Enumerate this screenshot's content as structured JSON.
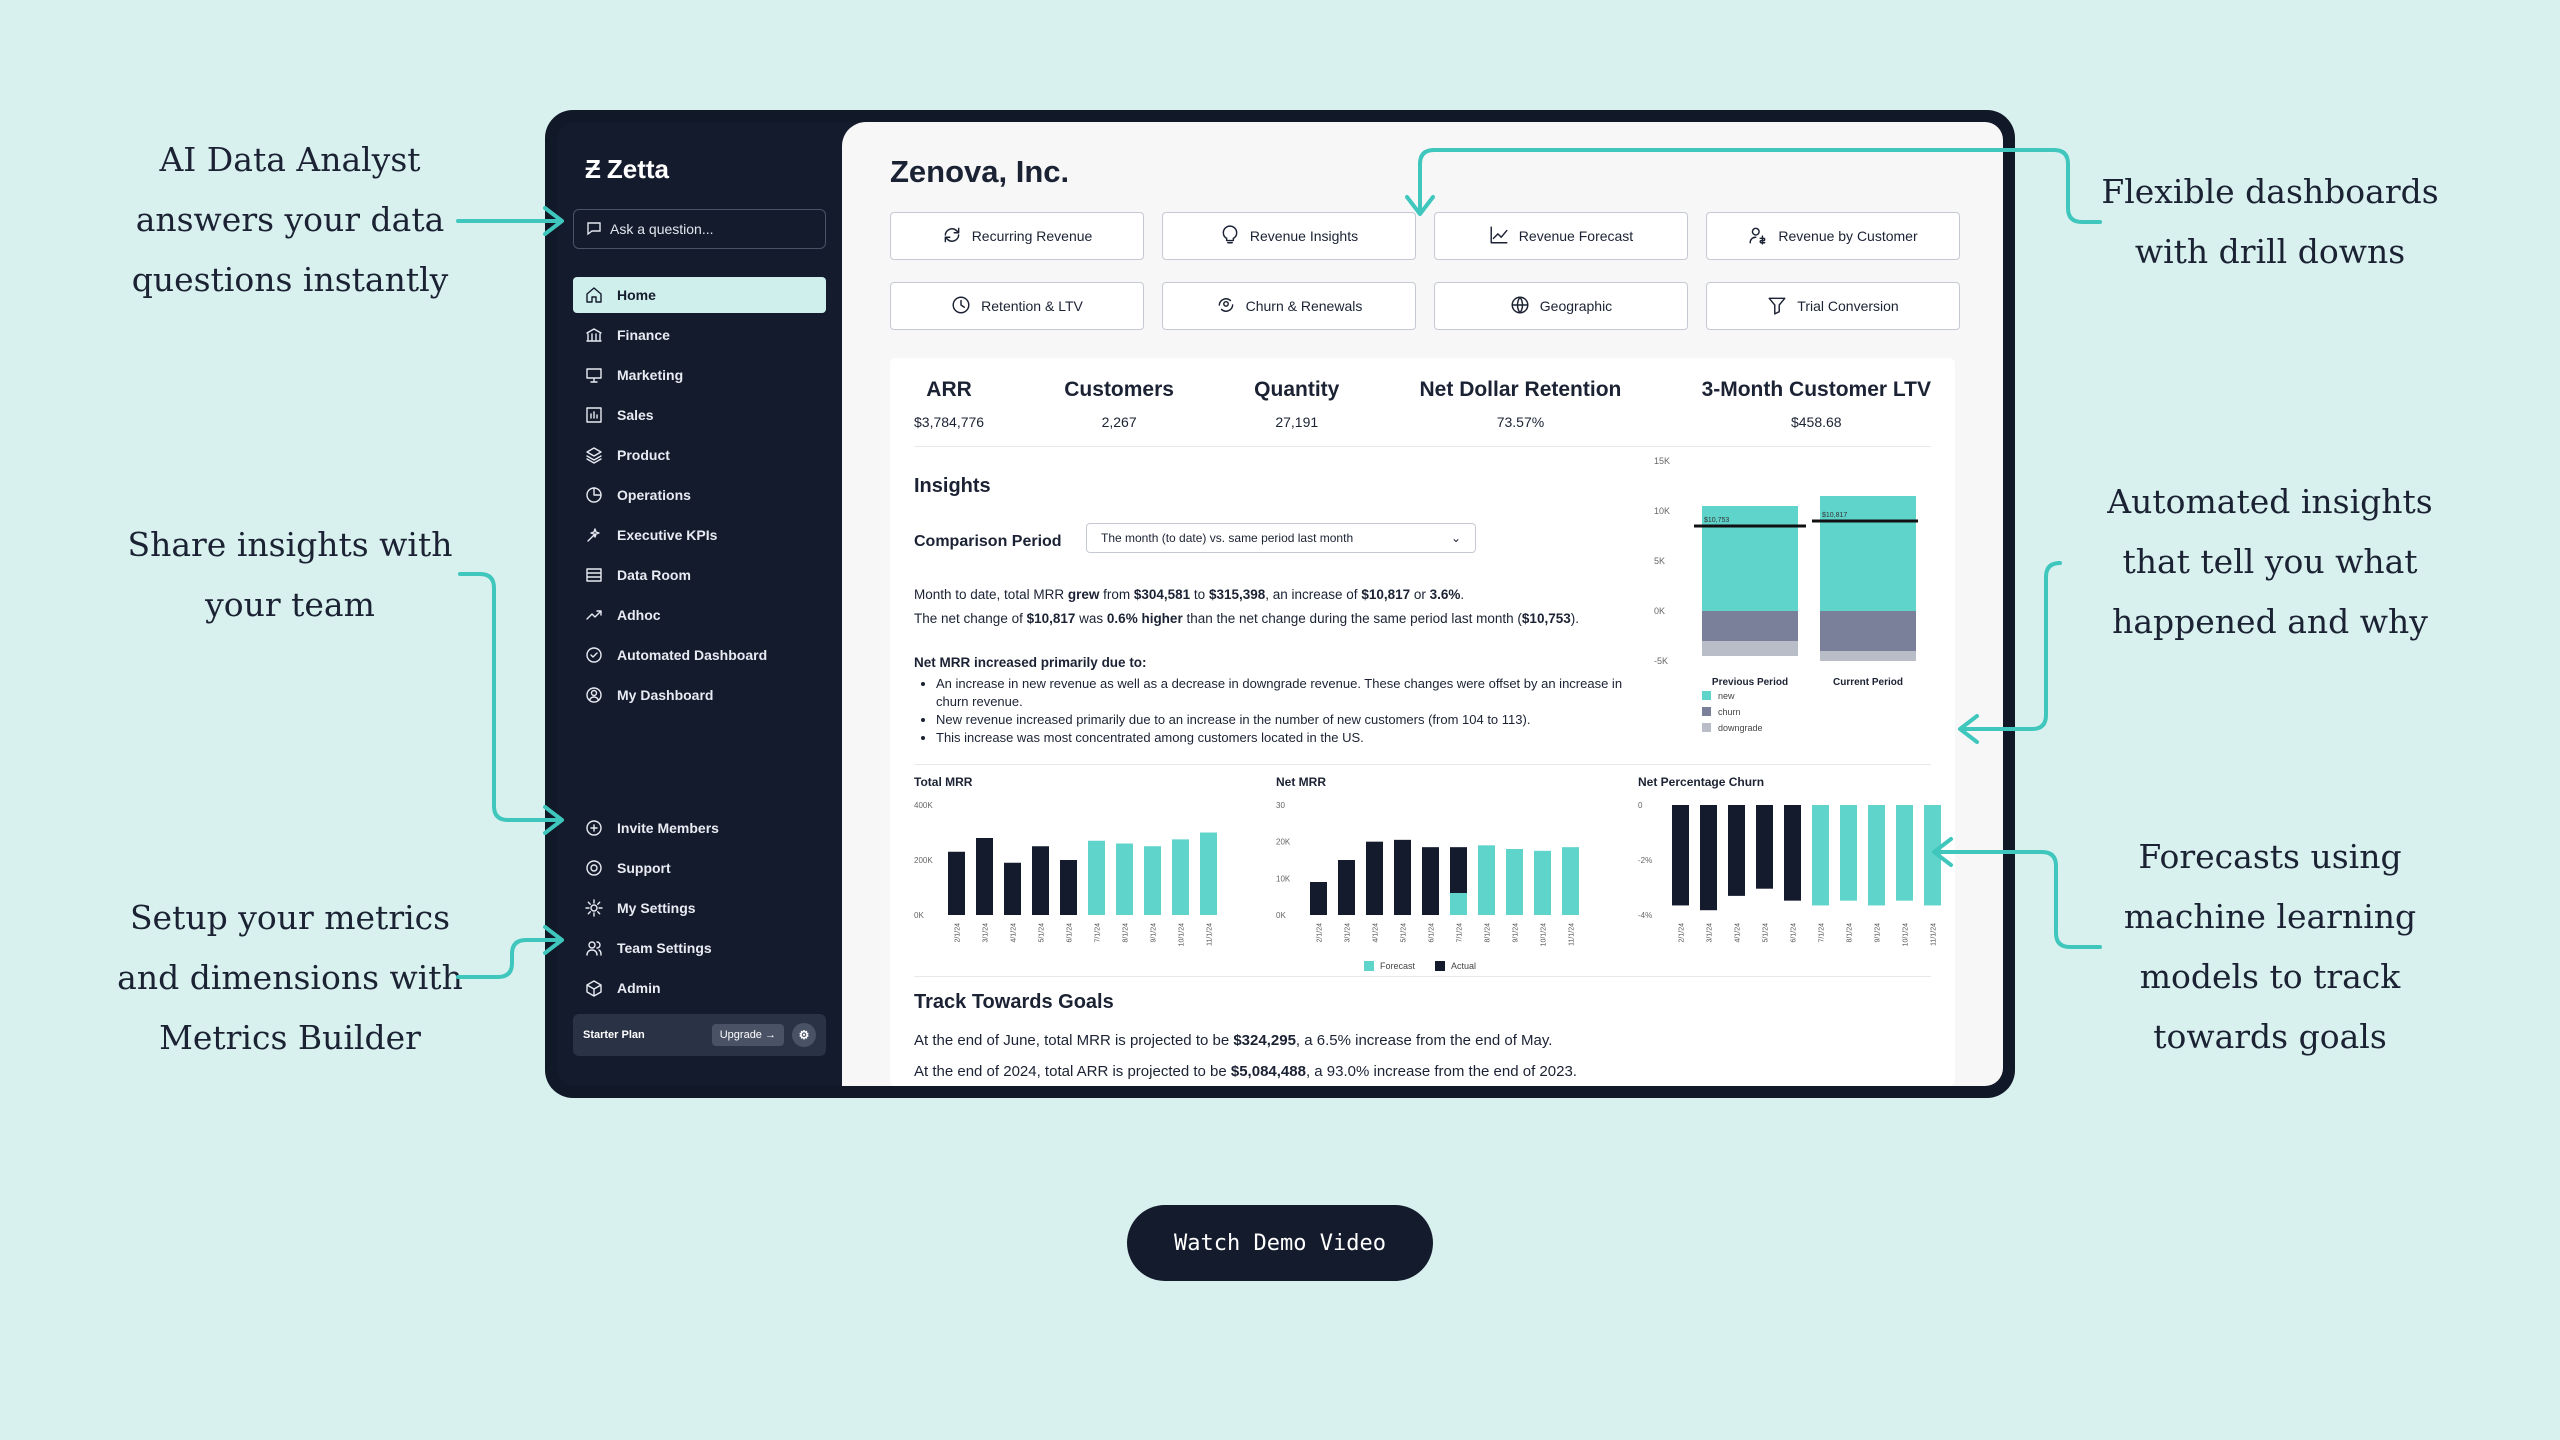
{
  "annotations": {
    "ai": [
      "AI Data Analyst",
      "answers your data",
      "questions instantly"
    ],
    "share": [
      "Share insights with",
      "your team"
    ],
    "setup": [
      "Setup your metrics",
      "and dimensions with",
      "Metrics Builder"
    ],
    "flex": [
      "Flexible dashboards",
      "with drill downs"
    ],
    "auto": [
      "Automated insights",
      "that tell you what",
      "happened and why"
    ],
    "forecast": [
      "Forecasts using",
      "machine learning",
      "models to track",
      "towards goals"
    ]
  },
  "app": {
    "logo": "Zetta",
    "ask_placeholder": "Ask a question...",
    "nav": [
      {
        "label": "Home",
        "icon": "home-icon",
        "active": true
      },
      {
        "label": "Finance",
        "icon": "bank-icon"
      },
      {
        "label": "Marketing",
        "icon": "presentation-icon"
      },
      {
        "label": "Sales",
        "icon": "bar-chart-icon"
      },
      {
        "label": "Product",
        "icon": "layers-icon"
      },
      {
        "label": "Operations",
        "icon": "pie-icon"
      },
      {
        "label": "Executive KPIs",
        "icon": "sparkle-icon"
      },
      {
        "label": "Data Room",
        "icon": "database-icon"
      },
      {
        "label": "Adhoc",
        "icon": "trend-icon"
      },
      {
        "label": "Automated Dashboard",
        "icon": "check-circle-icon"
      },
      {
        "label": "My Dashboard",
        "icon": "user-circle-icon"
      }
    ],
    "nav_bottom": [
      {
        "label": "Invite Members",
        "icon": "plus-circle-icon"
      },
      {
        "label": "Support",
        "icon": "life-buoy-icon"
      },
      {
        "label": "My Settings",
        "icon": "gear-icon"
      },
      {
        "label": "Team Settings",
        "icon": "users-icon"
      },
      {
        "label": "Admin",
        "icon": "cube-icon"
      }
    ],
    "plan": {
      "label": "Starter Plan",
      "upgrade": "Upgrade →"
    }
  },
  "main": {
    "company": "Zenova, Inc.",
    "tiles": [
      {
        "label": "Recurring Revenue",
        "icon": "refresh-dollar-icon"
      },
      {
        "label": "Revenue Insights",
        "icon": "lightbulb-icon"
      },
      {
        "label": "Revenue Forecast",
        "icon": "line-chart-icon"
      },
      {
        "label": "Revenue by Customer",
        "icon": "user-dollar-icon"
      },
      {
        "label": "Retention & LTV",
        "icon": "clock-icon"
      },
      {
        "label": "Churn & Renewals",
        "icon": "cycle-user-icon"
      },
      {
        "label": "Geographic",
        "icon": "globe-icon"
      },
      {
        "label": "Trial Conversion",
        "icon": "funnel-icon"
      }
    ],
    "kpis": [
      {
        "label": "ARR",
        "value": "$3,784,776"
      },
      {
        "label": "Customers",
        "value": "2,267"
      },
      {
        "label": "Quantity",
        "value": "27,191"
      },
      {
        "label": "Net Dollar Retention",
        "value": "73.57%"
      },
      {
        "label": "3-Month Customer LTV",
        "value": "$458.68"
      }
    ],
    "insights": {
      "title": "Insights",
      "comparison_label": "Comparison Period",
      "comparison_value": "The month (to date) vs. same period last month",
      "line1": [
        "Month to date, total MRR ",
        "grew",
        " from ",
        "$304,581",
        " to ",
        "$315,398",
        ", an increase of ",
        "$10,817",
        " or ",
        "3.6%",
        "."
      ],
      "line2": [
        "The net change of ",
        "$10,817",
        " was ",
        "0.6% higher",
        " than the net change during the same period last month (",
        "$10,753",
        ")."
      ],
      "reason_title": "Net MRR increased primarily due to:",
      "reasons": [
        "An increase in new revenue as well as a decrease in downgrade revenue. These changes were offset by an increase in churn revenue.",
        "New revenue increased primarily due to an increase in the number of new customers (from 104 to 113).",
        "This increase was most concentrated among customers located in the US."
      ]
    },
    "goals": {
      "title": "Track Towards Goals",
      "line1": [
        "At the end of June, total MRR is projected to be ",
        "$324,295",
        ", a 6.5% increase from the end of May."
      ],
      "line2": [
        "At the end of 2024, total ARR is projected to be ",
        "$5,084,488",
        ", a 93.0% increase from the end of 2023."
      ]
    },
    "mini_legend": {
      "forecast": "Forecast",
      "actual": "Actual"
    }
  },
  "demo_button": "Watch Demo Video",
  "colors": {
    "teal": "#5fd4cb",
    "navy": "#141b2d",
    "gray": "#b9bdc7",
    "slate": "#7a809a"
  },
  "chart_data": [
    {
      "type": "bar",
      "stacked": true,
      "categories": [
        "Previous Period",
        "Current Period"
      ],
      "series": [
        {
          "name": "new",
          "values": [
            10.5,
            11.5
          ]
        },
        {
          "name": "churn",
          "values": [
            -3.0,
            -4.0
          ]
        },
        {
          "name": "downgrade",
          "values": [
            -1.5,
            -1.0
          ]
        }
      ],
      "ticks": [
        "15K",
        "10K",
        "5K",
        "0K",
        "-5K"
      ],
      "ylim": [
        -5,
        15
      ],
      "annotations": [
        "$10,753",
        "$10,817"
      ]
    },
    {
      "type": "bar",
      "title": "Total MRR",
      "ticks": [
        "400K",
        "200K",
        "0K"
      ],
      "categories": [
        "2/1/24",
        "3/1/24",
        "4/1/24",
        "5/1/24",
        "6/1/24",
        "7/1/24",
        "8/1/24",
        "9/1/24",
        "10/1/24",
        "11/1/24"
      ],
      "actual": [
        230000,
        280000,
        190000,
        250000,
        200000,
        null,
        null,
        null,
        null,
        null
      ],
      "forecast": [
        null,
        null,
        null,
        null,
        null,
        270000,
        260000,
        250000,
        275000,
        300000
      ],
      "ylim": [
        0,
        400000
      ]
    },
    {
      "type": "bar",
      "title": "Net MRR",
      "ticks": [
        "30",
        "20K",
        "10K",
        "0K"
      ],
      "categories": [
        "2/1/24",
        "3/1/24",
        "4/1/24",
        "5/1/24",
        "6/1/24",
        "7/1/24",
        "8/1/24",
        "9/1/24",
        "10/1/24",
        "11/1/24"
      ],
      "actual": [
        9000,
        15000,
        20000,
        20500,
        18500,
        18500,
        null,
        null,
        null,
        null
      ],
      "forecast": [
        null,
        null,
        null,
        null,
        null,
        6000,
        19000,
        18000,
        17500,
        18500
      ],
      "ylim": [
        0,
        30000
      ]
    },
    {
      "type": "bar",
      "title": "Net Percentage Churn",
      "ticks": [
        "0",
        "-2%",
        "-4%"
      ],
      "categories": [
        "2/1/24",
        "3/1/24",
        "4/1/24",
        "5/1/24",
        "6/1/24",
        "7/1/24",
        "8/1/24",
        "9/1/24",
        "10/1/24",
        "11/1/24"
      ],
      "actual": [
        -4.2,
        -4.4,
        -3.8,
        -3.5,
        -4.0,
        -2.4,
        null,
        null,
        null,
        null
      ],
      "forecast": [
        null,
        null,
        null,
        null,
        null,
        -4.2,
        -4.0,
        -4.2,
        -4.0,
        -4.2
      ],
      "ylim": [
        -4.6,
        0
      ]
    }
  ]
}
